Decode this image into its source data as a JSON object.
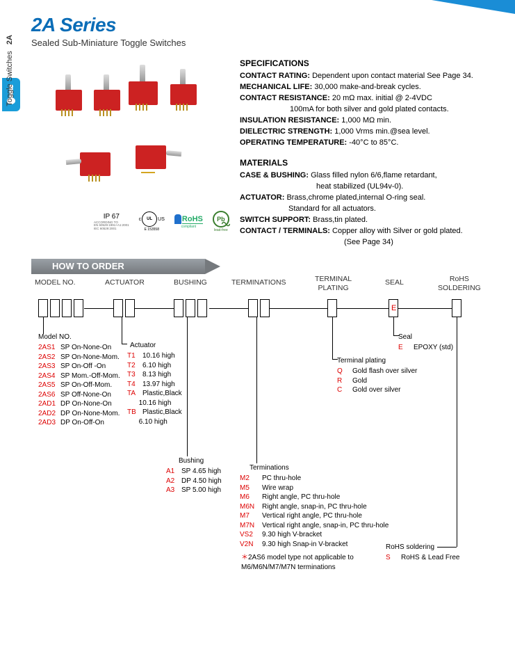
{
  "header": {
    "title": "2A Series",
    "subtitle": "Sealed Sub-Miniature Toggle Switches"
  },
  "sidebar": {
    "line1": "2A",
    "line2": "Toggle Switches"
  },
  "certs": {
    "ip": "IP 67",
    "ip_sub": "ACCORDING TO\nEN 60529:1991+A1:2001\nIEC 60529:2001",
    "ul_c": "c",
    "ul": "UL",
    "ul_us": "US",
    "ul_sub": "E 153558",
    "rohs": "RoHS",
    "rohs_sub": "compliant",
    "pb": "Pb",
    "pb_sub": "lead-free"
  },
  "specs": {
    "title": "SPECIFICATIONS",
    "rows": [
      {
        "lab": "CONTACT RATING:",
        "val": "Dependent upon contact material See Page 34."
      },
      {
        "lab": "MECHANICAL LIFE:",
        "val": "30,000 make-and-break cycles."
      },
      {
        "lab": "CONTACT RESISTANCE:",
        "val": "20 mΩ max. initial @ 2-4VDC"
      },
      {
        "lab": "",
        "val": "100mA for both silver and gold plated contacts."
      },
      {
        "lab": "INSULATION RESISTANCE:",
        "val": "1,000 MΩ min."
      },
      {
        "lab": "DIELECTRIC STRENGTH:",
        "val": "1,000 Vrms min.@sea level."
      },
      {
        "lab": "OPERATING TEMPERATURE:",
        "val": "-40°C to 85°C."
      }
    ]
  },
  "materials": {
    "title": "MATERIALS",
    "rows": [
      {
        "lab": "CASE & BUSHING:",
        "val": "Glass filled nylon 6/6,flame retardant,"
      },
      {
        "lab": "",
        "val": "heat stabilized (UL94v-0)."
      },
      {
        "lab": "ACTUATOR:",
        "val": "Brass,chrome plated,internal O-ring seal."
      },
      {
        "lab": "",
        "val": "Standard for all actuators."
      },
      {
        "lab": "SWITCH  SUPPORT:",
        "val": "Brass,tin plated."
      },
      {
        "lab": "CONTACT / TERMINALS:",
        "val": "Copper alloy with Silver or gold plated."
      },
      {
        "lab": "",
        "val": "(See Page 34)"
      }
    ]
  },
  "hto": {
    "banner": "HOW TO ORDER",
    "cols": {
      "model": "MODEL NO.",
      "actuator": "ACTUATOR",
      "bushing": "BUSHING",
      "term": "TERMINATIONS",
      "plating": "TERMINAL\nPLATING",
      "seal": "SEAL",
      "rohs": "RoHS\nSOLDERING"
    },
    "seal_letter": "E",
    "model_head": "Model NO.",
    "models": [
      {
        "c": "2AS1",
        "d": "SP On-None-On"
      },
      {
        "c": "2AS2",
        "d": "SP On-None-Mom."
      },
      {
        "c": "2AS3",
        "d": "SP On-Off -On"
      },
      {
        "c": "2AS4",
        "d": "SP Mom.-Off-Mom."
      },
      {
        "c": "2AS5",
        "d": "SP On-Off-Mom."
      },
      {
        "c": "2AS6",
        "d": "SP Off-None-On"
      },
      {
        "c": "2AD1",
        "d": "DP On-None-On"
      },
      {
        "c": "2AD2",
        "d": "DP On-None-Mom."
      },
      {
        "c": "2AD3",
        "d": "DP On-Off-On"
      }
    ],
    "actuator_head": "Actuator",
    "actuators": [
      {
        "c": "T1",
        "d": "10.16 high"
      },
      {
        "c": "T2",
        "d": "6.10 high"
      },
      {
        "c": "T3",
        "d": "8.13 high"
      },
      {
        "c": "T4",
        "d": "13.97 high"
      },
      {
        "c": "TA",
        "d": "Plastic,Black\n10.16 high"
      },
      {
        "c": "TB",
        "d": "Plastic,Black\n6.10 high"
      }
    ],
    "bushing_head": "Bushing",
    "bushings": [
      {
        "c": "A1",
        "d": "SP 4.65 high"
      },
      {
        "c": "A2",
        "d": "DP 4.50 high"
      },
      {
        "c": "A3",
        "d": "SP 5.00 high"
      }
    ],
    "term_head": "Terminations",
    "terms": [
      {
        "c": "M2",
        "d": "PC thru-hole"
      },
      {
        "c": "M5",
        "d": "Wire wrap"
      },
      {
        "c": "M6",
        "d": "Right angle, PC thru-hole"
      },
      {
        "c": "M6N",
        "d": "Right angle, snap-in, PC thru-hole"
      },
      {
        "c": "M7",
        "d": "Vertical right angle, PC thru-hole"
      },
      {
        "c": "M7N",
        "d": "Vertical right angle, snap-in, PC thru-hole"
      },
      {
        "c": "VS2",
        "d": "9.30 high V-bracket"
      },
      {
        "c": "V2N",
        "d": "9.30 high Snap-in V-bracket"
      }
    ],
    "term_note": "2AS6 model type not applicable to\nM6/M6N/M7/M7N terminations",
    "plating_head": "Terminal plating",
    "platings": [
      {
        "c": "Q",
        "d": "Gold flash over silver"
      },
      {
        "c": "R",
        "d": "Gold"
      },
      {
        "c": "C",
        "d": "Gold over silver"
      }
    ],
    "seal_head": "Seal",
    "seals": [
      {
        "c": "E",
        "d": "EPOXY (std)"
      }
    ],
    "rohs_head": "RoHS soldering",
    "rohs_items": [
      {
        "c": "S",
        "d": "RoHS & Lead Free"
      }
    ]
  },
  "colors": {
    "title_blue": "#0b6db7",
    "tab_blue": "#1a9dd9",
    "switch_red": "#c22",
    "code_red": "#d00",
    "green": "#3a7e2e",
    "banner_grey_top": "#9aa0a6",
    "banner_grey_bot": "#75797d"
  }
}
